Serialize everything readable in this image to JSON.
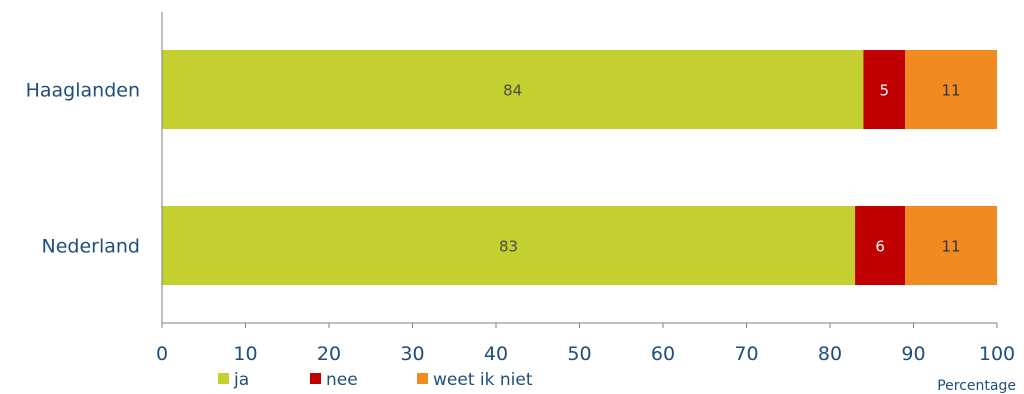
{
  "chart_data": {
    "type": "bar",
    "orientation": "horizontal",
    "stacked": true,
    "categories": [
      "Haaglanden",
      "Nederland"
    ],
    "series": [
      {
        "name": "ja",
        "values": [
          84,
          83
        ],
        "color": "#c4d02f",
        "label_color": "#4d4d4d"
      },
      {
        "name": "nee",
        "values": [
          5,
          6
        ],
        "color": "#c00000",
        "label_color": "#ffffff"
      },
      {
        "name": "weet ik niet",
        "values": [
          11,
          11
        ],
        "color": "#f28a22",
        "label_color": "#333333"
      }
    ],
    "xlabel": "Percentage",
    "ylabel": "",
    "xlim": [
      0,
      100
    ],
    "xticks": [
      0,
      10,
      20,
      30,
      40,
      50,
      60,
      70,
      80,
      90,
      100
    ],
    "grid": false,
    "legend_position": "bottom-left"
  }
}
